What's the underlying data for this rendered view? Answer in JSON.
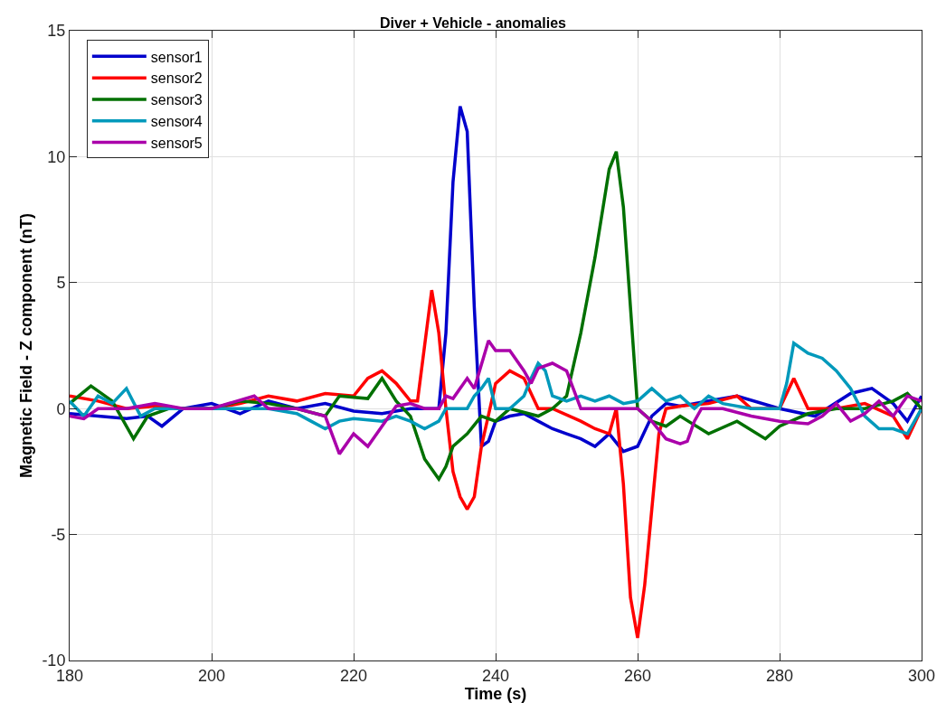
{
  "chart_data": {
    "type": "line",
    "title": "Diver + Vehicle - anomalies",
    "xlabel": "Time (s)",
    "ylabel": "Magnetic Field - Z component (nT)",
    "xlim": [
      180,
      300
    ],
    "xticks": [
      180,
      200,
      220,
      240,
      260,
      280,
      300
    ],
    "ylim": [
      -10,
      15
    ],
    "yticks": [
      -10,
      -5,
      0,
      5,
      10,
      15
    ],
    "grid": true,
    "legend": "top left",
    "line_style": "solid",
    "series": [
      {
        "name": "sensor1",
        "color": "#0000cc",
        "x": [
          180,
          184,
          188,
          191,
          193,
          196,
          200,
          204,
          208,
          212,
          216,
          220,
          224,
          228,
          232,
          233,
          234,
          235,
          236,
          237,
          238,
          239,
          240,
          242,
          244,
          246,
          248,
          250,
          252,
          254,
          256,
          258,
          260,
          262,
          264,
          266,
          270,
          274,
          280,
          285,
          290,
          293,
          296,
          298,
          300
        ],
        "values": [
          -0.2,
          -0.3,
          -0.4,
          -0.3,
          -0.7,
          0,
          0.2,
          -0.2,
          0.3,
          0,
          0.2,
          -0.1,
          -0.2,
          0,
          0,
          3,
          9,
          12,
          11,
          4,
          -1.5,
          -1.3,
          -0.5,
          -0.3,
          -0.2,
          -0.5,
          -0.8,
          -1.0,
          -1.2,
          -1.5,
          -1.0,
          -1.7,
          -1.5,
          -0.3,
          0.2,
          0.1,
          0.3,
          0.5,
          0,
          -0.3,
          0.6,
          0.8,
          0.2,
          -0.5,
          0.5
        ]
      },
      {
        "name": "sensor2",
        "color": "#ff0000",
        "x": [
          180,
          184,
          188,
          192,
          196,
          200,
          204,
          208,
          212,
          216,
          220,
          222,
          224,
          226,
          228,
          229,
          230,
          231,
          232,
          233,
          234,
          235,
          236,
          237,
          238,
          240,
          242,
          244,
          246,
          248,
          252,
          254,
          256,
          257,
          258,
          259,
          260,
          261,
          262,
          263,
          264,
          266,
          270,
          274,
          276,
          280,
          282,
          284,
          288,
          292,
          296,
          298,
          300
        ],
        "values": [
          0.5,
          0.3,
          0,
          0.1,
          0,
          0,
          0.2,
          0.5,
          0.3,
          0.6,
          0.5,
          1.2,
          1.5,
          1.0,
          0.3,
          0.3,
          2.5,
          4.7,
          3,
          0,
          -2.5,
          -3.5,
          -4,
          -3.5,
          -1.5,
          1.0,
          1.5,
          1.2,
          0,
          0,
          -0.5,
          -0.8,
          -1.0,
          0,
          -3,
          -7.5,
          -9.1,
          -7,
          -4,
          -1,
          0,
          0.1,
          0.2,
          0.5,
          0,
          0,
          1.2,
          0,
          0,
          0.2,
          -0.3,
          -1.2,
          0
        ]
      },
      {
        "name": "sensor3",
        "color": "#007000",
        "x": [
          180,
          183,
          186,
          189,
          191,
          194,
          200,
          204,
          208,
          212,
          216,
          218,
          222,
          224,
          226,
          228,
          230,
          232,
          233,
          234,
          236,
          238,
          240,
          242,
          246,
          248,
          250,
          252,
          254,
          256,
          257,
          258,
          259,
          260,
          262,
          264,
          266,
          270,
          274,
          278,
          280,
          284,
          288,
          292,
          296,
          298,
          300
        ],
        "values": [
          0.2,
          0.9,
          0.3,
          -1.2,
          -0.3,
          0,
          0,
          0.3,
          0.2,
          0,
          -0.3,
          0.5,
          0.4,
          1.2,
          0.3,
          -0.3,
          -2.0,
          -2.8,
          -2.3,
          -1.5,
          -1.0,
          -0.3,
          -0.5,
          0,
          -0.3,
          0,
          0.5,
          3,
          6,
          9.5,
          10.2,
          8,
          4,
          0,
          -0.5,
          -0.7,
          -0.3,
          -1.0,
          -0.5,
          -1.2,
          -0.7,
          -0.2,
          0,
          0,
          0.3,
          0.6,
          0
        ]
      },
      {
        "name": "sensor4",
        "color": "#0099bb",
        "x": [
          180,
          182,
          184,
          186,
          188,
          190,
          192,
          196,
          200,
          204,
          208,
          212,
          214,
          216,
          218,
          220,
          224,
          226,
          228,
          230,
          232,
          233,
          236,
          237,
          238,
          239,
          240,
          242,
          244,
          245,
          246,
          247,
          248,
          250,
          252,
          254,
          256,
          258,
          260,
          262,
          264,
          266,
          268,
          270,
          272,
          276,
          280,
          281,
          282,
          284,
          286,
          288,
          290,
          292,
          294,
          296,
          298,
          300
        ],
        "values": [
          0.3,
          -0.3,
          0.5,
          0.2,
          0.8,
          -0.3,
          0,
          0,
          0,
          0,
          0,
          -0.2,
          -0.5,
          -0.8,
          -0.5,
          -0.4,
          -0.5,
          -0.3,
          -0.5,
          -0.8,
          -0.5,
          0,
          0,
          0.5,
          0.8,
          1.2,
          0,
          0,
          0.5,
          1.2,
          1.8,
          1.5,
          0.5,
          0.3,
          0.5,
          0.3,
          0.5,
          0.2,
          0.3,
          0.8,
          0.3,
          0.5,
          0,
          0.5,
          0.2,
          0,
          0,
          1.0,
          2.6,
          2.2,
          2.0,
          1.5,
          0.8,
          -0.3,
          -0.8,
          -0.8,
          -1.0,
          0
        ]
      },
      {
        "name": "sensor5",
        "color": "#aa00aa",
        "x": [
          180,
          182,
          184,
          188,
          192,
          196,
          200,
          206,
          208,
          212,
          216,
          218,
          220,
          222,
          224,
          226,
          228,
          230,
          232,
          233,
          234,
          236,
          237,
          239,
          240,
          242,
          244,
          245,
          246,
          248,
          250,
          252,
          256,
          260,
          262,
          264,
          266,
          267,
          268,
          269,
          272,
          276,
          280,
          284,
          286,
          288,
          290,
          292,
          294,
          296,
          298,
          300
        ],
        "values": [
          -0.3,
          -0.4,
          0,
          0,
          0.2,
          0,
          0,
          0.5,
          0,
          0,
          -0.3,
          -1.8,
          -1.0,
          -1.5,
          -0.7,
          0.1,
          0.2,
          0,
          0,
          0.5,
          0.4,
          1.2,
          0.8,
          2.7,
          2.3,
          2.3,
          1.5,
          1.0,
          1.6,
          1.8,
          1.5,
          0,
          0,
          0,
          -0.5,
          -1.2,
          -1.4,
          -1.3,
          -0.5,
          0,
          0,
          -0.3,
          -0.5,
          -0.6,
          -0.3,
          0.2,
          -0.5,
          -0.2,
          0.3,
          -0.3,
          0.5,
          0.3
        ]
      }
    ]
  }
}
